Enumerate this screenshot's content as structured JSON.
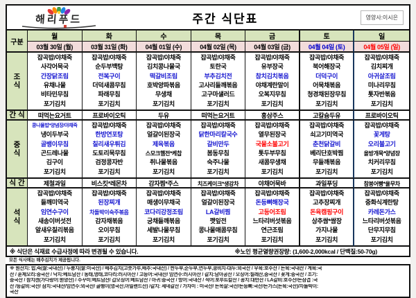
{
  "page": {
    "logo_text": "해리푸드",
    "title": "주간 식단표",
    "nutritionist": "영양사:이시은"
  },
  "colors": {
    "header_green": "#d7e4bc",
    "date_pink": "#f2dcdb",
    "highlight_blue": "#1515d0",
    "highlight_red": "#ff0000",
    "saturday_date": "#0000cc",
    "sunday_date": "#ff0000",
    "sunday_border": "#17365d"
  },
  "table": {
    "corner_label": "구분",
    "weekdays": [
      "월",
      "화",
      "수",
      "목",
      "금",
      "토",
      "일"
    ],
    "dates": [
      {
        "text": "03월 30일 (월)",
        "color": "#000000"
      },
      {
        "text": "03월 31일 (화)",
        "color": "#000000"
      },
      {
        "text": "04월 01일 (수)",
        "color": "#000000"
      },
      {
        "text": "04월 02일 (목)",
        "color": "#000000"
      },
      {
        "text": "04월 03일 (금)",
        "color": "#000000"
      },
      {
        "text": "04월 04일 (토)",
        "color": "#0000cc"
      },
      {
        "text": "04월 05일 (일)",
        "color": "#ff0000"
      }
    ],
    "sections": [
      {
        "name": "breakfast",
        "label": "조\n식",
        "columns": [
          [
            "잡곡밥/야채죽",
            "사각어묵국",
            {
              "t": "간장닭조림",
              "c": "b"
            },
            "유채나물",
            "비타민무침",
            "포기김치"
          ],
          [
            "잡곡밥/야채죽",
            "순두부백탕",
            {
              "t": "전복구이",
              "c": "b"
            },
            "더덕새콤무침",
            "파래무침",
            "포기김치"
          ],
          [
            "잡곡밥/야채죽",
            "김치콩나물국",
            {
              "t": "떡갈비조림",
              "c": "b"
            },
            "호박양파볶음",
            "무생채",
            "포기김치"
          ],
          [
            "잡곡밥/야채죽",
            "토란국",
            {
              "t": "부추김치전",
              "c": "b"
            },
            "고사리들깨볶음",
            "고구마샐러드",
            "포기김치"
          ],
          [
            "잡곡밥/야채죽",
            "유부장국",
            {
              "t": "참치김치볶음",
              "c": "b"
            },
            "야채계란말이",
            "오복지무침",
            "포기김치"
          ],
          [
            "잡곡밥/야채죽",
            "북어해장국",
            {
              "t": "더덕구이",
              "c": "b"
            },
            "어묵채볶음",
            "청경채된장무침",
            "포기김치"
          ],
          [
            "잡곡밥/야채죽",
            "김치찌개",
            {
              "t": "아귀살조림",
              "c": "b"
            },
            "미나리무침",
            "톳자반볶음",
            "포기김치"
          ]
        ]
      },
      {
        "name": "morning-snack",
        "label": "간 식",
        "columns": [
          [
            "떠먹는요거트"
          ],
          [
            "프로바이오틱"
          ],
          [
            "두유"
          ],
          [
            "떠먹는요거트"
          ],
          [
            "홍삼주스"
          ],
          [
            "고칼슘두유"
          ],
          [
            "프로바이오틱"
          ]
        ]
      },
      {
        "name": "lunch",
        "label": "중\n식",
        "columns": [
          [
            {
              "t": "콩나물밥*양념장/야채죽",
              "c": "b"
            },
            "냉이두부국",
            {
              "t": "골뱅이무침",
              "c": "b"
            },
            "곤드레나물",
            "김구이",
            "포기김치"
          ],
          [
            "잡곡밥/야채죽",
            {
              "t": "한방연포탕",
              "c": "b"
            },
            {
              "t": "칠리새우튀김",
              "c": "b"
            },
            "도토리묵무침",
            "검정콩자반",
            "포기김치"
          ],
          [
            "잡곡밥/야채죽",
            "얼갈이된장국",
            {
              "t": "제육볶음",
              "c": "b"
            },
            "스모크햄전*케찹",
            "취나물볶음",
            "포기김치"
          ],
          [
            "잡곡밥/야채죽",
            {
              "t": "닭한마리칼국수",
              "c": "b"
            },
            {
              "t": "갈비만두",
              "c": "b"
            },
            "봄동무침",
            "숙주나물",
            "포기김치"
          ],
          [
            "잡곡밥/야채죽",
            "열무된장국",
            {
              "t": "국물소불고기",
              "c": "r"
            },
            "톳두부무침",
            "새콤무생채",
            "포기김치"
          ],
          [
            "잡곡밥/야채죽",
            "쇠고기미역국",
            {
              "t": "춘천닭갈비",
              "c": "b"
            },
            "베리단호박찜",
            "무들깨볶음",
            "포기김치"
          ],
          [
            "잡곡밥/야채죽",
            {
              "t": "꽃게탕",
              "c": "b"
            },
            {
              "t": "오리불고기",
              "c": "b"
            },
            "올방개묵*양념장",
            "치커리무침",
            "포기김치"
          ]
        ]
      },
      {
        "name": "afternoon-snack",
        "label": "식 간",
        "columns": [
          [
            "제철과일"
          ],
          [
            "비스킷*레몬차"
          ],
          [
            "감자찜*주스"
          ],
          [
            "치즈케이크*생강차"
          ],
          [
            "야채어묵바"
          ],
          [
            "과일푸딩"
          ],
          [
            "참붕어빵*율무차"
          ]
        ]
      },
      {
        "name": "dinner",
        "label": "석\n식",
        "columns": [
          [
            "잡곡밥/야채죽",
            "들깨미역국",
            {
              "t": "임연수구이",
              "c": "b"
            },
            "새송이버섯전",
            "알새우칠리볶음",
            "포기김치"
          ],
          [
            "잡곡밥/야채죽",
            {
              "t": "된장찌개",
              "c": "b"
            },
            {
              "t": "차돌박이숙주볶음",
              "c": "b"
            },
            "감자채볶음",
            "오이무침",
            "포기김치"
          ],
          [
            "잡곡밥/야채죽",
            "매생이무채국",
            {
              "t": "코다리강정조림",
              "c": "b"
            },
            "궁채들깨볶음",
            "세발나물무침",
            "포기김치"
          ],
          [
            "잡곡밥/야채죽",
            "얼갈이된장국",
            {
              "t": "LA갈비찜",
              "c": "b"
            },
            "깻잎전",
            "콩나물매콤무침",
            "포기김치"
          ],
          [
            "잡곡밥/야채죽",
            {
              "t": "돈등뼈해장국",
              "c": "b"
            },
            {
              "t": "고등어조림",
              "c": "r"
            },
            "느타리버섯볶음",
            "연근조림",
            "포기김치"
          ],
          [
            "잡곡밥/야채죽",
            "고추장찌개",
            {
              "t": "돈육캠핑구이",
              "c": "r"
            },
            "상추쌈*쌈장",
            "가지나물",
            "포기김치"
          ],
          [
            "잡곡밥/야채죽",
            "중화식계란탕",
            {
              "t": "카레돈가스",
              "c": "b"
            },
            "느타리버섯볶음",
            "단무지무침",
            "포기김치"
          ]
        ]
      }
    ]
  },
  "footer": {
    "note_left": "※ 식단은 식재료 수급사정에 따라 변경될 수 있습니다.",
    "note_right": "※노인 평균열량권장량: (1,600-2,000kcal / 단백질:50-70g)",
    "sub_note": "모든 식사에는 배추김치가 제공됩니다."
  },
  "origin": {
    "lines": [
      "※ 원산지: 밥,죽(쌀:국내산) / 누룽지(쌀:미국산) / 배추김치(고춧가루,배추:국내산) / 판두부,순두부,연두부,콩비지-대두:외국산 / 우육:호주산 / 돈육:국내산 / 계육:국",
      "산 / 훈제오리:중국산 / 낙지:베트남산 / 동태,명태,코다리:러시아산 / 고등어:국내산/ 임연수:러시아산 / 갈치:남아공산 / 오징어:칠레산,중국산 / 꽃게:중국산 / 조기:",
      "중국산 / 참치캔(가다랑어:원양산) / 주꾸미:베트남산/ 갑오징어:베트남산 / 아귀:중국산 / 방어:국내산 / 적어:포루트칼산 / 꽁치:대만산 / LA갈비:호주산/돈삼겹 :국",
      "산 /등갈비:국산/ 삼치:국내산/임연수:외국산/ 골뱅이(영국산,아일랜드산) /갈치: 세네갈산 / 가자미 : 미국산/ 돈목살:국산/돈등뼈:국산/돈가스(돈육:국산)/차돌박이:",
      "국산"
    ]
  }
}
